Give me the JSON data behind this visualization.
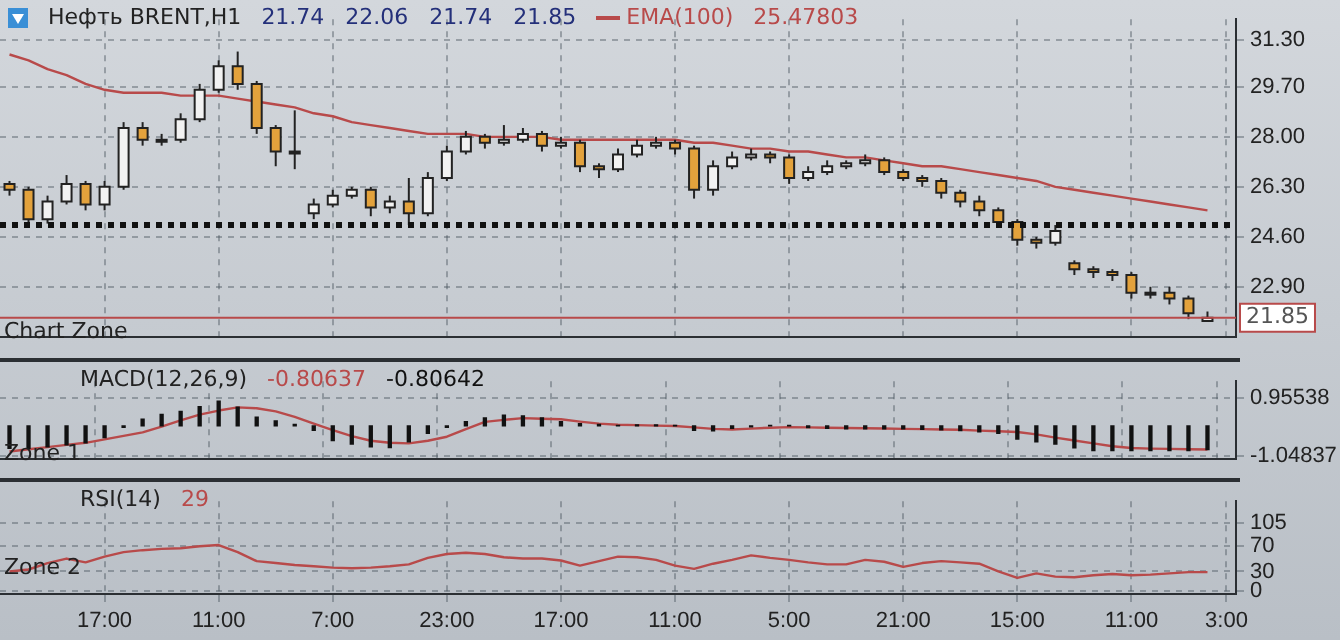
{
  "chart_data": [
    {
      "type": "candlestick",
      "title": "Нефть BRENT,H1",
      "subtitle": "21.74   22.06   21.74   21.85",
      "annotations": [
        "25.47803",
        "Chart Zone"
      ],
      "categories": [
        null,
        null,
        null,
        null,
        null,
        null,
        null,
        null,
        null,
        null,
        null,
        null,
        null,
        null,
        null,
        null,
        null,
        null,
        null,
        null,
        null,
        null,
        null,
        null,
        null,
        null,
        null,
        null,
        null,
        null,
        null,
        null,
        null,
        null,
        null,
        null,
        null,
        null,
        null,
        null,
        null,
        null,
        null,
        null,
        null,
        null,
        null,
        null,
        null,
        null,
        null,
        null,
        null,
        null,
        null,
        null,
        null,
        null,
        null,
        null,
        null,
        null,
        null,
        null,
        null
      ],
      "series": [
        {
          "type": "candlestick",
          "ohlc": [
            [
              26.4,
              26.5,
              26.0,
              26.2
            ],
            [
              26.2,
              26.3,
              24.95,
              25.2
            ],
            [
              25.2,
              26.0,
              25.05,
              25.8
            ],
            [
              25.8,
              26.7,
              25.7,
              26.4
            ],
            [
              26.4,
              26.5,
              25.5,
              25.7
            ],
            [
              25.7,
              26.5,
              25.5,
              26.3
            ],
            [
              26.3,
              28.5,
              26.2,
              28.3
            ],
            [
              28.3,
              28.5,
              27.7,
              27.9
            ],
            [
              27.9,
              28.1,
              27.7,
              27.9
            ],
            [
              27.9,
              28.8,
              27.8,
              28.6
            ],
            [
              28.6,
              29.8,
              28.5,
              29.6
            ],
            [
              29.6,
              30.6,
              29.5,
              30.4
            ],
            [
              30.4,
              30.9,
              29.6,
              29.8
            ],
            [
              29.8,
              29.9,
              28.1,
              28.3
            ],
            [
              28.3,
              28.4,
              27.0,
              27.5
            ],
            [
              27.5,
              28.9,
              26.9,
              27.5
            ],
            [
              25.4,
              25.9,
              25.2,
              25.7
            ],
            [
              25.7,
              26.2,
              25.6,
              26.0
            ],
            [
              26.0,
              26.3,
              25.9,
              26.2
            ],
            [
              26.2,
              26.3,
              25.3,
              25.6
            ],
            [
              25.6,
              26.0,
              25.4,
              25.8
            ],
            [
              25.8,
              26.6,
              25.0,
              25.4
            ],
            [
              25.4,
              26.8,
              25.3,
              26.6
            ],
            [
              26.6,
              27.7,
              26.5,
              27.5
            ],
            [
              27.5,
              28.2,
              27.4,
              28.0
            ],
            [
              28.0,
              28.1,
              27.6,
              27.8
            ],
            [
              27.8,
              28.4,
              27.7,
              27.9
            ],
            [
              27.9,
              28.3,
              27.8,
              28.1
            ],
            [
              28.1,
              28.2,
              27.5,
              27.7
            ],
            [
              27.7,
              28.0,
              27.6,
              27.8
            ],
            [
              27.8,
              27.9,
              26.8,
              27.0
            ],
            [
              27.0,
              27.1,
              26.6,
              26.9
            ],
            [
              26.9,
              27.6,
              26.8,
              27.4
            ],
            [
              27.4,
              27.9,
              27.3,
              27.7
            ],
            [
              27.7,
              28.0,
              27.6,
              27.8
            ],
            [
              27.8,
              27.9,
              27.4,
              27.6
            ],
            [
              27.6,
              27.7,
              25.9,
              26.2
            ],
            [
              26.2,
              27.2,
              26.0,
              27.0
            ],
            [
              27.0,
              27.5,
              26.9,
              27.3
            ],
            [
              27.3,
              27.6,
              27.2,
              27.4
            ],
            [
              27.4,
              27.5,
              27.1,
              27.3
            ],
            [
              27.3,
              27.4,
              26.4,
              26.6
            ],
            [
              26.6,
              27.0,
              26.5,
              26.8
            ],
            [
              26.8,
              27.2,
              26.7,
              27.0
            ],
            [
              27.0,
              27.2,
              26.9,
              27.1
            ],
            [
              27.1,
              27.4,
              27.0,
              27.2
            ],
            [
              27.2,
              27.3,
              26.7,
              26.8
            ],
            [
              26.8,
              26.9,
              26.5,
              26.6
            ],
            [
              26.6,
              26.7,
              26.3,
              26.5
            ],
            [
              26.5,
              26.6,
              25.9,
              26.1
            ],
            [
              26.1,
              26.2,
              25.6,
              25.8
            ],
            [
              25.8,
              26.0,
              25.3,
              25.5
            ],
            [
              25.5,
              25.6,
              24.9,
              25.1
            ],
            [
              25.1,
              25.2,
              24.3,
              24.5
            ],
            [
              24.5,
              24.6,
              24.2,
              24.4
            ],
            [
              24.4,
              25.0,
              24.3,
              24.8
            ],
            [
              23.7,
              23.8,
              23.3,
              23.5
            ],
            [
              23.5,
              23.6,
              23.2,
              23.4
            ],
            [
              23.4,
              23.5,
              23.1,
              23.3
            ],
            [
              23.3,
              23.4,
              22.5,
              22.7
            ],
            [
              22.7,
              22.9,
              22.5,
              22.7
            ],
            [
              22.7,
              22.9,
              22.3,
              22.5
            ],
            [
              22.5,
              22.6,
              21.8,
              22.0
            ],
            [
              21.74,
              22.06,
              21.74,
              21.85
            ],
            null
          ],
          "colors": [
            "#e3a23c",
            "#e3a23c",
            "#f2f2f2",
            "#f2f2f2",
            "#e3a23c",
            "#f2f2f2",
            "#f2f2f2",
            "#e3a23c",
            "#e3a23c",
            "#f2f2f2",
            "#f2f2f2",
            "#f2f2f2",
            "#e3a23c",
            "#e3a23c",
            "#e3a23c",
            "#e3a23c",
            "#f2f2f2",
            "#f2f2f2",
            "#f2f2f2",
            "#e3a23c",
            "#f2f2f2",
            "#e3a23c",
            "#f2f2f2",
            "#f2f2f2",
            "#f2f2f2",
            "#e3a23c",
            "#f2f2f2",
            "#f2f2f2",
            "#e3a23c",
            "#f2f2f2",
            "#e3a23c",
            "#e3a23c",
            "#f2f2f2",
            "#f2f2f2",
            "#f2f2f2",
            "#e3a23c",
            "#e3a23c",
            "#f2f2f2",
            "#f2f2f2",
            "#f2f2f2",
            "#e3a23c",
            "#e3a23c",
            "#f2f2f2",
            "#f2f2f2",
            "#f2f2f2",
            "#f2f2f2",
            "#e3a23c",
            "#e3a23c",
            "#e3a23c",
            "#e3a23c",
            "#e3a23c",
            "#e3a23c",
            "#e3a23c",
            "#e3a23c",
            "#e3a23c",
            "#f2f2f2",
            "#e3a23c",
            "#e3a23c",
            "#e3a23c",
            "#e3a23c",
            "#e3a23c",
            "#e3a23c",
            "#e3a23c",
            "#f2f2f2",
            null
          ]
        },
        {
          "type": "line",
          "name": "EMA(100)",
          "color": "#b84a4a",
          "values": [
            30.8,
            30.6,
            30.3,
            30.1,
            29.8,
            29.6,
            29.5,
            29.5,
            29.5,
            29.4,
            29.4,
            29.4,
            29.3,
            29.2,
            29.1,
            29.0,
            28.8,
            28.7,
            28.5,
            28.4,
            28.3,
            28.2,
            28.1,
            28.1,
            28.1,
            28.0,
            28.0,
            28.0,
            28.0,
            27.9,
            27.9,
            27.9,
            27.9,
            27.9,
            27.9,
            27.9,
            27.8,
            27.8,
            27.7,
            27.6,
            27.6,
            27.5,
            27.5,
            27.4,
            27.3,
            27.3,
            27.2,
            27.1,
            27.0,
            27.0,
            26.9,
            26.8,
            26.7,
            26.6,
            26.5,
            26.3,
            26.2,
            26.1,
            26.0,
            25.9,
            25.8,
            25.7,
            25.6,
            25.5,
            null
          ]
        }
      ],
      "ylim": [
        21.2,
        32.0
      ],
      "yticks": [
        {
          "value": 22.9,
          "label": "22.90"
        },
        {
          "value": 24.6,
          "label": "24.60"
        },
        {
          "value": 26.3,
          "label": "26.30"
        },
        {
          "value": 28,
          "label": "28.00"
        },
        {
          "value": 29.7,
          "label": "29.70"
        },
        {
          "value": 31.3,
          "label": "31.30"
        }
      ],
      "grid": true,
      "tick_labels": "y",
      "ref_lines": [
        {
          "axis": "y",
          "value": 25.0,
          "color": "#111111",
          "line_style": "dotted"
        },
        {
          "axis": "y",
          "value": 21.85,
          "label": "21.85",
          "color": "#b84a4a",
          "line_style": "solid"
        }
      ]
    },
    {
      "type": "bar",
      "title": "MACD(12,26,9)",
      "annotations": [
        "-0.80637",
        "-0.80642",
        "Zone 1"
      ],
      "categories": [
        null,
        null,
        null,
        null,
        null,
        null,
        null,
        null,
        null,
        null,
        null,
        null,
        null,
        null,
        null,
        null,
        null,
        null,
        null,
        null,
        null,
        null,
        null,
        null,
        null,
        null,
        null,
        null,
        null,
        null,
        null,
        null,
        null,
        null,
        null,
        null,
        null,
        null,
        null,
        null,
        null,
        null,
        null,
        null,
        null,
        null,
        null,
        null,
        null,
        null,
        null,
        null,
        null,
        null,
        null,
        null,
        null,
        null,
        null,
        null,
        null,
        null,
        null,
        null,
        null
      ],
      "series": [
        {
          "type": "line",
          "color": "#b84a4a",
          "values": [
            -0.88,
            -0.8,
            -0.73,
            -0.65,
            -0.58,
            -0.46,
            -0.34,
            -0.22,
            -0.02,
            0.19,
            0.39,
            0.53,
            0.64,
            0.61,
            0.5,
            0.31,
            0.08,
            -0.14,
            -0.35,
            -0.51,
            -0.58,
            -0.6,
            -0.51,
            -0.37,
            -0.11,
            0.14,
            0.21,
            0.27,
            0.25,
            0.23,
            0.15,
            0.08,
            0.04,
            0.03,
            0.01,
            0,
            -0.05,
            -0.1,
            -0.12,
            -0.09,
            -0.06,
            -0.04,
            -0.05,
            -0.06,
            -0.07,
            -0.08,
            -0.09,
            -0.1,
            -0.11,
            -0.12,
            -0.13,
            -0.16,
            -0.18,
            -0.21,
            -0.29,
            -0.4,
            -0.5,
            -0.6,
            -0.7,
            -0.76,
            -0.78,
            -0.79,
            -0.8,
            -0.81,
            null
          ]
        },
        {
          "type": "bar",
          "color": "#111111",
          "values": [
            -0.77,
            -0.77,
            -0.72,
            -0.65,
            -0.58,
            -0.4,
            -0.05,
            0.23,
            0.4,
            0.5,
            0.66,
            0.85,
            0.65,
            0.3,
            0.17,
            0.05,
            -0.15,
            -0.5,
            -0.62,
            -0.72,
            -0.74,
            -0.55,
            -0.25,
            -0.05,
            0.15,
            0.28,
            0.37,
            0.35,
            0.28,
            0.15,
            0.08,
            0.05,
            0.02,
            0.04,
            0.04,
            0.02,
            -0.15,
            -0.17,
            -0.08,
            -0.03,
            0.02,
            0.02,
            -0.06,
            -0.08,
            -0.1,
            -0.1,
            -0.1,
            -0.1,
            -0.12,
            -0.13,
            -0.16,
            -0.2,
            -0.25,
            -0.45,
            -0.55,
            -0.62,
            -0.75,
            -0.85,
            -0.85,
            -0.85,
            -0.85,
            -0.85,
            -0.85,
            -0.81,
            null
          ]
        }
      ],
      "ylim": [
        -1.13,
        1.54
      ],
      "yticks": [
        -1.04837,
        0.95538
      ],
      "grid": true,
      "tick_labels": "y"
    },
    {
      "type": "line",
      "title": "RSI(14)",
      "annotations": [
        "29",
        "Zone 2"
      ],
      "categories": [
        null,
        null,
        null,
        null,
        null,
        "17:00",
        null,
        null,
        null,
        null,
        null,
        "11:00",
        null,
        null,
        null,
        null,
        null,
        "7:00",
        null,
        null,
        null,
        null,
        null,
        "23:00",
        null,
        null,
        null,
        null,
        null,
        "17:00",
        null,
        null,
        null,
        null,
        null,
        "11:00",
        null,
        null,
        null,
        null,
        null,
        "5:00",
        null,
        null,
        null,
        null,
        null,
        "21:00",
        null,
        null,
        null,
        null,
        null,
        "15:00",
        null,
        null,
        null,
        null,
        null,
        "11:00",
        null,
        null,
        null,
        null,
        "3:00"
      ],
      "series": [
        {
          "type": "line",
          "color": "#b84a4a",
          "values": [
            30,
            33,
            43,
            50,
            44,
            53,
            60,
            63,
            65,
            66,
            69,
            71,
            60,
            46,
            43,
            40,
            38,
            36,
            35,
            36,
            38,
            41,
            51,
            57,
            59,
            57,
            52,
            50,
            50,
            47,
            39,
            46,
            53,
            52,
            48,
            39,
            34,
            42,
            48,
            55,
            51,
            48,
            44,
            41,
            41,
            48,
            45,
            37,
            43,
            46,
            44,
            42,
            30,
            20,
            27,
            22,
            21,
            24,
            26,
            24,
            25,
            27,
            29,
            29,
            null
          ]
        }
      ],
      "ylim": [
        -5,
        139
      ],
      "yticks": [
        0,
        30,
        70,
        105
      ],
      "grid": true
    }
  ]
}
